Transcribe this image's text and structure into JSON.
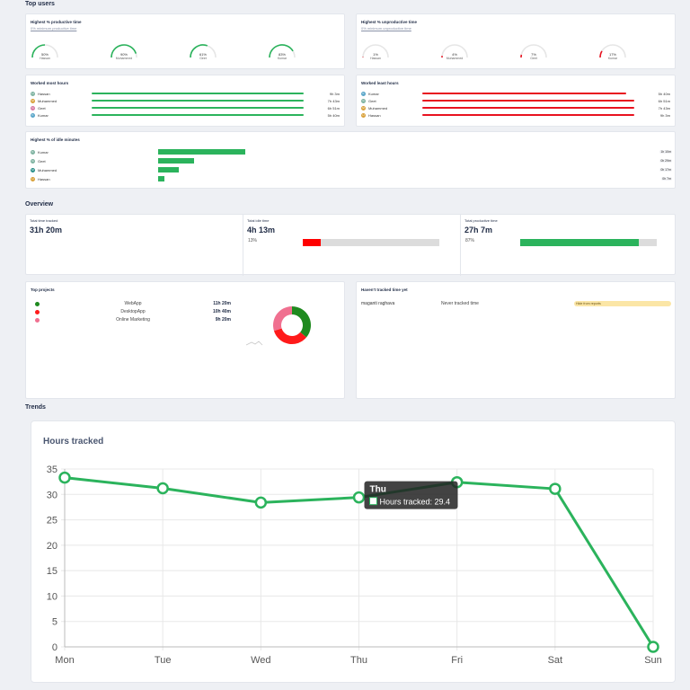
{
  "sections": {
    "top_users": "Top users",
    "overview": "Overview",
    "trends": "Trends"
  },
  "productive": {
    "title": "Highest % productive time",
    "subtitle": "0% minimum productive time",
    "users": [
      {
        "pct": "50%",
        "name": "Hassan",
        "value": 0.5
      },
      {
        "pct": "90%",
        "name": "Muhammed",
        "value": 0.9
      },
      {
        "pct": "61%",
        "name": "Geet",
        "value": 0.61
      },
      {
        "pct": "83%",
        "name": "Kumar",
        "value": 0.83
      }
    ],
    "color": "#2bb35c"
  },
  "unproductive": {
    "title": "Highest % unproductive time",
    "subtitle": "0% minimum unproductive time",
    "users": [
      {
        "pct": "1%",
        "name": "Hassan",
        "value": 0.01
      },
      {
        "pct": "4%",
        "name": "Muhammed",
        "value": 0.04
      },
      {
        "pct": "7%",
        "name": "Geet",
        "value": 0.07
      },
      {
        "pct": "17%",
        "name": "Kumar",
        "value": 0.17
      }
    ],
    "color": "#e8121f"
  },
  "most_hours": {
    "title": "Worked most hours",
    "rows": [
      {
        "initial": "H",
        "name": "Hassan",
        "value": "9h 3m",
        "fraction": 1.0,
        "avatar_color": "#7fb3a1"
      },
      {
        "initial": "M",
        "name": "Muhammed",
        "value": "7h 43m",
        "fraction": 1.0,
        "avatar_color": "#d9a13b"
      },
      {
        "initial": "G",
        "name": "Geet",
        "value": "6h 51m",
        "fraction": 1.0,
        "avatar_color": "#d77aa5"
      },
      {
        "initial": "K",
        "name": "Kumar",
        "value": "5h 40m",
        "fraction": 1.0,
        "avatar_color": "#5aa6c9"
      }
    ]
  },
  "least_hours": {
    "title": "Worked least hours",
    "rows": [
      {
        "initial": "K",
        "name": "Kumar",
        "value": "5h 40m",
        "fraction": 0.96,
        "avatar_color": "#5aa6c9"
      },
      {
        "initial": "G",
        "name": "Geet",
        "value": "6h 51m",
        "fraction": 1.0,
        "avatar_color": "#7fb3a1"
      },
      {
        "initial": "M",
        "name": "Muhammed",
        "value": "7h 43m",
        "fraction": 1.0,
        "avatar_color": "#d9a13b"
      },
      {
        "initial": "H",
        "name": "Hassan",
        "value": "9h 3m",
        "fraction": 1.0,
        "avatar_color": "#d9a13b"
      }
    ]
  },
  "idle": {
    "title": "Highest % of idle minutes",
    "rows": [
      {
        "initial": "K",
        "name": "Kumar",
        "value": "1h 10m",
        "fraction": 0.17,
        "avatar_color": "#7fb3a1"
      },
      {
        "initial": "G",
        "name": "Geet",
        "value": "0h 29m",
        "fraction": 0.07,
        "avatar_color": "#7fb3a1"
      },
      {
        "initial": "M",
        "name": "Muhammed",
        "value": "0h 17m",
        "fraction": 0.04,
        "avatar_color": "#2a8f8a"
      },
      {
        "initial": "H",
        "name": "Hassan",
        "value": "0h 7m",
        "fraction": 0.01,
        "avatar_color": "#d9a13b"
      }
    ]
  },
  "overview": {
    "total_tracked": {
      "label": "Total time tracked",
      "value": "31h 20m"
    },
    "idle": {
      "label": "Total idle time",
      "value": "4h 13m",
      "pct": "13%",
      "fraction": 0.13,
      "color": "#ff0000"
    },
    "productive": {
      "label": "Total productive time",
      "value": "27h 7m",
      "pct": "87%",
      "fraction": 0.87,
      "color": "#2bb35c"
    }
  },
  "projects": {
    "title": "Top projects",
    "items": [
      {
        "name": "WebApp",
        "value": "11h 20m",
        "color": "#1f8a1f",
        "hours": 11.33
      },
      {
        "name": "DesktopApp",
        "value": "10h 40m",
        "color": "#ff1a1a",
        "hours": 10.67
      },
      {
        "name": "Online Marketing",
        "value": "9h 20m",
        "color": "#f07090",
        "hours": 9.33
      }
    ]
  },
  "not_tracked": {
    "title": "Haven't tracked time yet",
    "user": "maganti raghava",
    "status": "Never tracked time",
    "action": "Hide from reports"
  },
  "chart_data": {
    "type": "line",
    "title": "Hours tracked",
    "categories": [
      "Mon",
      "Tue",
      "Wed",
      "Thu",
      "Fri",
      "Sat",
      "Sun"
    ],
    "series": [
      {
        "values": [
          33.3,
          31.2,
          28.4,
          29.4,
          32.4,
          31.1,
          0
        ]
      }
    ],
    "ylim": [
      0,
      35
    ],
    "yticks": [
      0,
      5,
      10,
      15,
      20,
      25,
      30,
      35
    ],
    "grid": true,
    "color": "#2bb35c",
    "tooltip": {
      "title": "Thu",
      "label": "Hours tracked: 29.4"
    }
  }
}
